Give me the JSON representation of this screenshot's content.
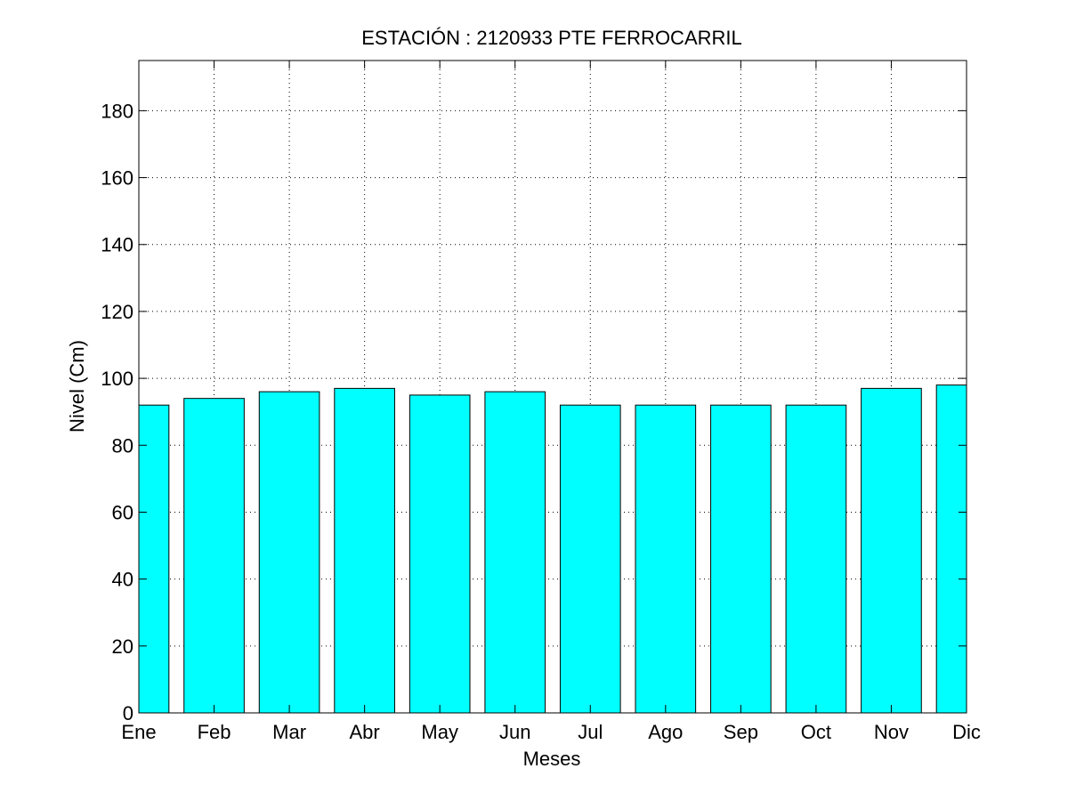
{
  "chart_data": {
    "type": "bar",
    "title": "ESTACIÓN :  2120933  PTE FERROCARRIL",
    "xlabel": "Meses",
    "ylabel": "Nivel (Cm)",
    "categories": [
      "Ene",
      "Feb",
      "Mar",
      "Abr",
      "May",
      "Jun",
      "Jul",
      "Ago",
      "Sep",
      "Oct",
      "Nov",
      "Dic"
    ],
    "values": [
      92,
      94,
      96,
      97,
      95,
      96,
      92,
      92,
      92,
      92,
      97,
      98
    ],
    "ylim": [
      0,
      195
    ],
    "xlim": [
      1,
      12
    ],
    "yticks": [
      0,
      20,
      40,
      60,
      80,
      100,
      120,
      140,
      160,
      180
    ],
    "grid": true,
    "bar_color": "#00ffff",
    "legend": "none"
  }
}
